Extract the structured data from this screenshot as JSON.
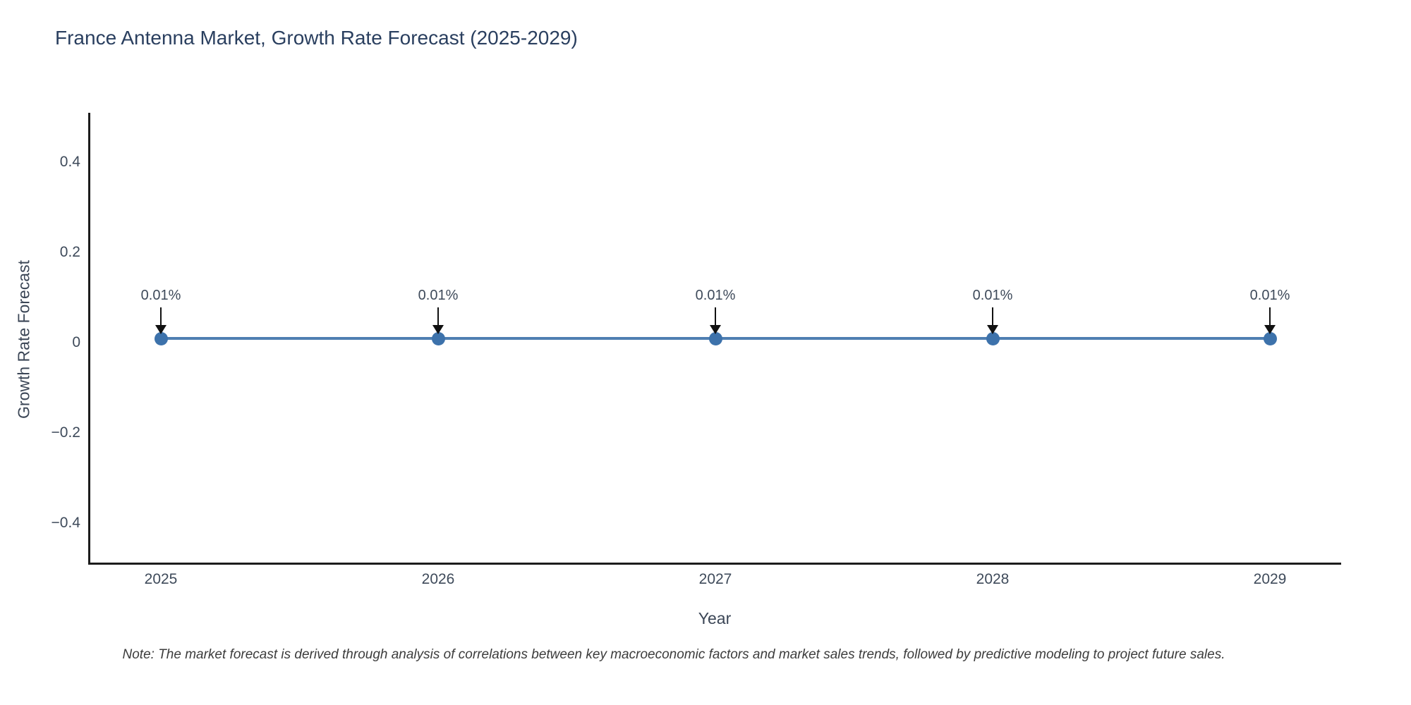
{
  "note": "Note: The market forecast is derived through analysis of correlations between key macroeconomic factors and market sales trends, followed by predictive modeling to project future sales.",
  "chart_data": {
    "type": "line",
    "title": "France Antenna Market, Growth Rate Forecast (2025-2029)",
    "xlabel": "Year",
    "ylabel": "Growth Rate Forecast",
    "categories": [
      "2025",
      "2026",
      "2027",
      "2028",
      "2029"
    ],
    "values": [
      0.01,
      0.01,
      0.01,
      0.01,
      0.01
    ],
    "point_labels": [
      "0.01%",
      "0.01%",
      "0.01%",
      "0.01%",
      "0.01%"
    ],
    "yticks": [
      {
        "value": 0.4,
        "label": "0.4"
      },
      {
        "value": 0.2,
        "label": "0.2"
      },
      {
        "value": 0,
        "label": "0"
      },
      {
        "value": -0.2,
        "label": "−0.2"
      },
      {
        "value": -0.4,
        "label": "−0.4"
      }
    ],
    "ylim": [
      -0.49,
      0.51
    ],
    "grid": false,
    "legend": false,
    "annotation_style": "down-arrow-to-point",
    "colors": {
      "line": "#4f7fb2",
      "marker": "#3d72ab",
      "arrow": "#111111",
      "axis_color": "#1c1c1c",
      "tick_color": "#3e4a5a",
      "annotation_color": "#3e4a5a",
      "title_color": "#2a3f5f",
      "axis_title_color": "#3b4656"
    }
  }
}
